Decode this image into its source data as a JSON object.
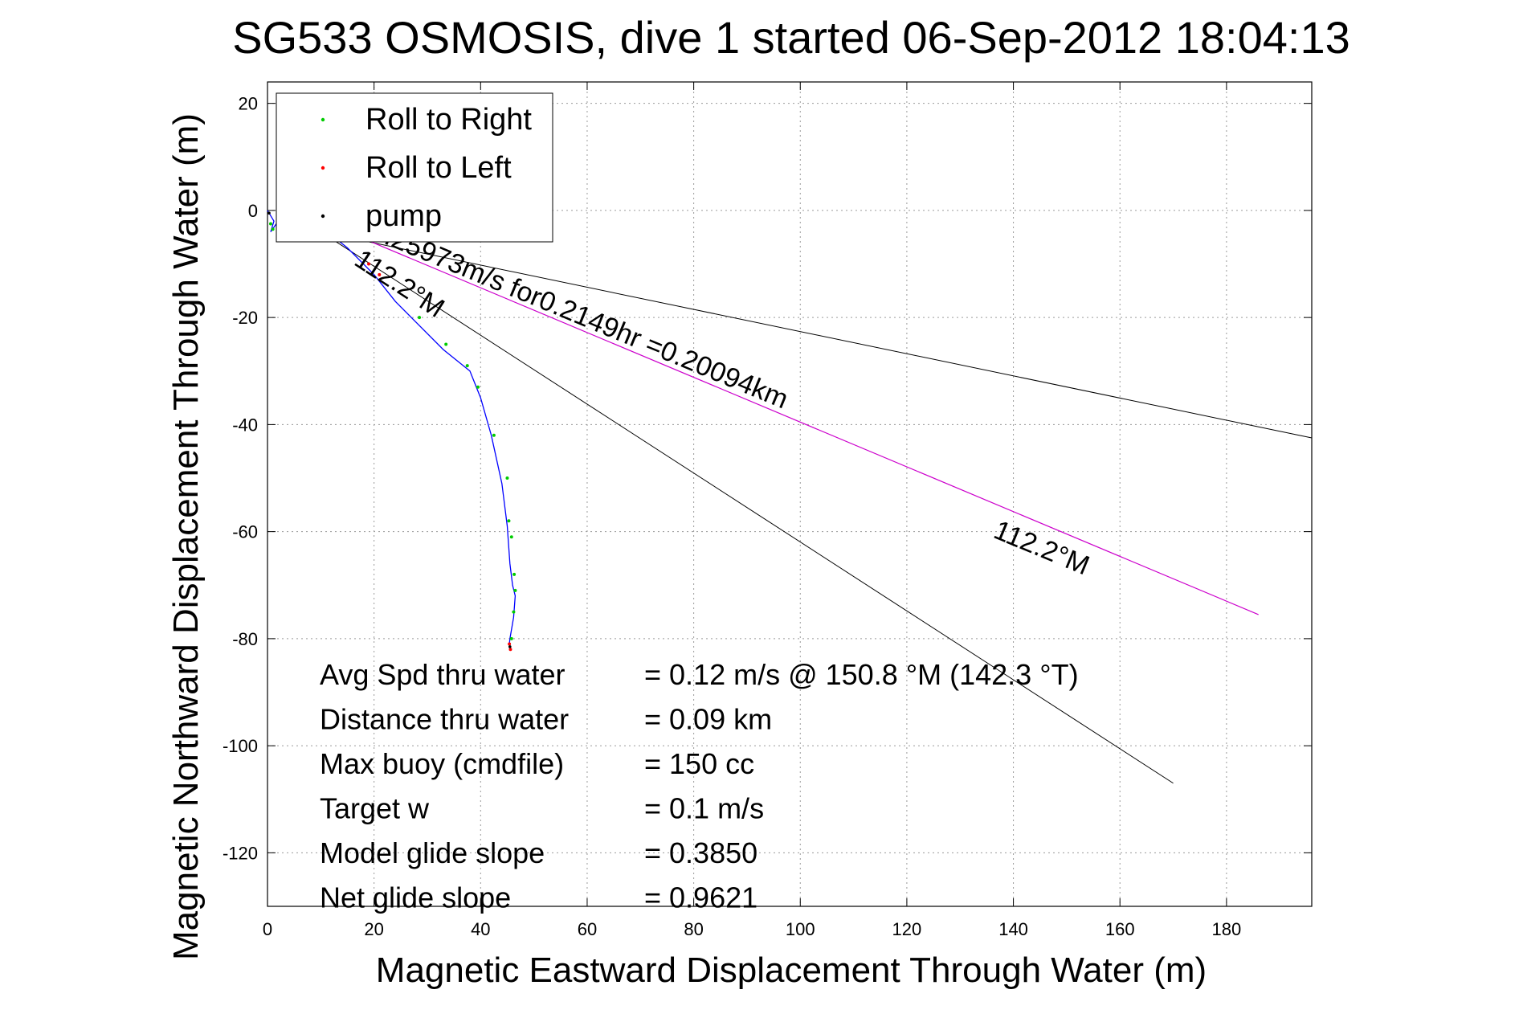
{
  "chart_data": {
    "type": "line",
    "title": "SG533 OSMOSIS, dive 1 started 06-Sep-2012 18:04:13",
    "xlabel": "Magnetic Eastward Displacement Through Water (m)",
    "ylabel": "Magnetic Northward Displacement Through Water (m)",
    "xlim": [
      0,
      196
    ],
    "ylim": [
      -130,
      24
    ],
    "x_ticks": [
      0,
      20,
      40,
      60,
      80,
      100,
      120,
      140,
      160,
      180
    ],
    "y_ticks": [
      20,
      0,
      -20,
      -40,
      -60,
      -80,
      -100,
      -120
    ],
    "grid": true,
    "legend_position": "top-left",
    "legend": [
      {
        "label": "Roll to Right",
        "color": "#00cc00"
      },
      {
        "label": "Roll to Left",
        "color": "#ff0000"
      },
      {
        "label": "pump",
        "color": "#000000"
      }
    ],
    "track": {
      "color": "#0000ff",
      "x": [
        0,
        1.2,
        0.6,
        2.0,
        5.0,
        10.0,
        15.0,
        20.0,
        24.0,
        28.0,
        33.0,
        38.0,
        40.0,
        42.0,
        44.0,
        45.0,
        45.5,
        46.0,
        46.5,
        46.2,
        45.5,
        45.4
      ],
      "y": [
        0,
        -2,
        -4,
        -2,
        -1,
        -3,
        -7,
        -12,
        -17,
        -21,
        -26,
        -30,
        -35,
        -42,
        -51,
        -59,
        -66,
        -70,
        -72,
        -76,
        -80,
        -81
      ]
    },
    "roll_right_points": {
      "x": [
        0.6,
        1.0,
        28.5,
        33.5,
        37.5,
        39.5,
        42.5,
        45.0,
        45.3,
        45.8,
        46.3,
        46.5,
        46.2,
        45.8
      ],
      "y": [
        -2.5,
        -3.5,
        -20,
        -25,
        -29,
        -33,
        -42,
        -50,
        -58,
        -61,
        -68,
        -71,
        -75,
        -80
      ]
    },
    "roll_left_points": {
      "x": [
        2.5,
        4.5,
        19.0,
        21.0,
        45.4,
        45.6
      ],
      "y": [
        -2.5,
        -1.5,
        -10,
        -12,
        -81,
        -82
      ]
    },
    "pump_points": {
      "x": [
        0.3,
        8.0,
        12.0,
        45.5
      ],
      "y": [
        -0.5,
        -2.0,
        -4.0,
        -81.5
      ]
    },
    "heading_lines": [
      {
        "color": "#000000",
        "x": [
          10,
          196
        ],
        "y": [
          -4,
          -42.5
        ]
      },
      {
        "color": "#000000",
        "x": [
          10,
          170
        ],
        "y": [
          -4,
          -107
        ]
      }
    ],
    "velocity_line": {
      "color": "#cc00cc",
      "x": [
        15,
        186
      ],
      "y": [
        -4,
        -75.5
      ]
    },
    "annotations": [
      {
        "text": "112.2°M",
        "x": 16,
        "y": -10,
        "angle": 33
      },
      {
        "text": "0.25973m/s for0.2149hr =0.20094km",
        "x": 19,
        "y": -5,
        "angle": 22.5
      },
      {
        "text": "112.2°M",
        "x": 136,
        "y": -61,
        "angle": 22.5
      }
    ],
    "stats": [
      {
        "label": "Avg Spd thru water",
        "value": "=  0.12 m/s @ 150.8 °M (142.3 °T)"
      },
      {
        "label": "Distance thru water",
        "value": "=  0.09 km"
      },
      {
        "label": "Max buoy (cmdfile)",
        "value": "= 150 cc"
      },
      {
        "label": "Target w",
        "value": "= 0.1 m/s"
      },
      {
        "label": "Model glide slope",
        "value": "= 0.3850"
      },
      {
        "label": "Net glide slope",
        "value": "= 0.9621"
      }
    ]
  }
}
